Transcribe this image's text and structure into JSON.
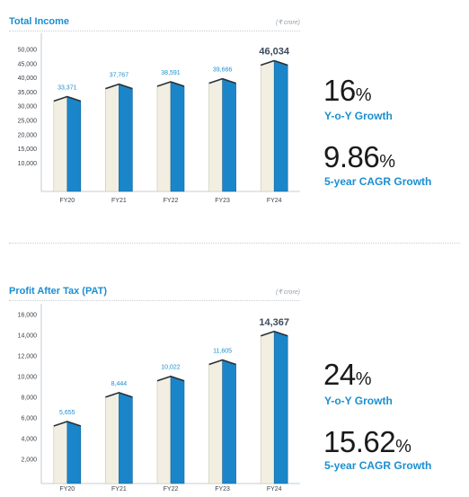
{
  "page": {
    "currency_note": "(₹ crore)"
  },
  "chart_data": [
    {
      "type": "bar",
      "title": "Total Income",
      "unit": "(₹ crore)",
      "categories": [
        "FY20",
        "FY21",
        "FY22",
        "FY23",
        "FY24"
      ],
      "values": [
        33371,
        37767,
        38591,
        39666,
        46034
      ],
      "value_labels": [
        "33,371",
        "37,767",
        "38,591",
        "39,666",
        "46,034"
      ],
      "ylim": [
        0,
        50000
      ],
      "yticks": [
        10000,
        15000,
        20000,
        25000,
        30000,
        35000,
        40000,
        45000,
        50000
      ],
      "ytick_labels": [
        "10,000",
        "15,000",
        "20,000",
        "25,000",
        "30,000",
        "35,000",
        "40,000",
        "45,000",
        "50,000"
      ],
      "highlight_index": 4,
      "grid": false,
      "colors": {
        "bar_light": "#f2efe2",
        "bar_dark": "#1a86c9",
        "label": "#1a8fd0",
        "highlight_label": "#3d4a5c"
      },
      "kpis": [
        {
          "value": "16",
          "suffix": "%",
          "label": "Y-o-Y Growth"
        },
        {
          "value": "9.86",
          "suffix": "%",
          "label": "5-year CAGR Growth"
        }
      ]
    },
    {
      "type": "bar",
      "title": "Profit After Tax (PAT)",
      "unit": "(₹ crore)",
      "categories": [
        "FY20",
        "FY21",
        "FY22",
        "FY23",
        "FY24"
      ],
      "values": [
        5655,
        8444,
        10022,
        11605,
        14367
      ],
      "value_labels": [
        "5,655",
        "8,444",
        "10,022",
        "11,605",
        "14,367"
      ],
      "ylim": [
        0,
        16000
      ],
      "yticks": [
        2000,
        4000,
        6000,
        8000,
        10000,
        12000,
        14000,
        16000
      ],
      "ytick_labels": [
        "2,000",
        "4,000",
        "6,000",
        "8,000",
        "10,000",
        "12,000",
        "14,000",
        "16,000"
      ],
      "highlight_index": 4,
      "grid": false,
      "colors": {
        "bar_light": "#f2efe2",
        "bar_dark": "#1a86c9",
        "label": "#1a8fd0",
        "highlight_label": "#3d4a5c"
      },
      "kpis": [
        {
          "value": "24",
          "suffix": "%",
          "label": "Y-o-Y Growth"
        },
        {
          "value": "15.62",
          "suffix": "%",
          "label": "5-year CAGR Growth"
        }
      ]
    }
  ]
}
